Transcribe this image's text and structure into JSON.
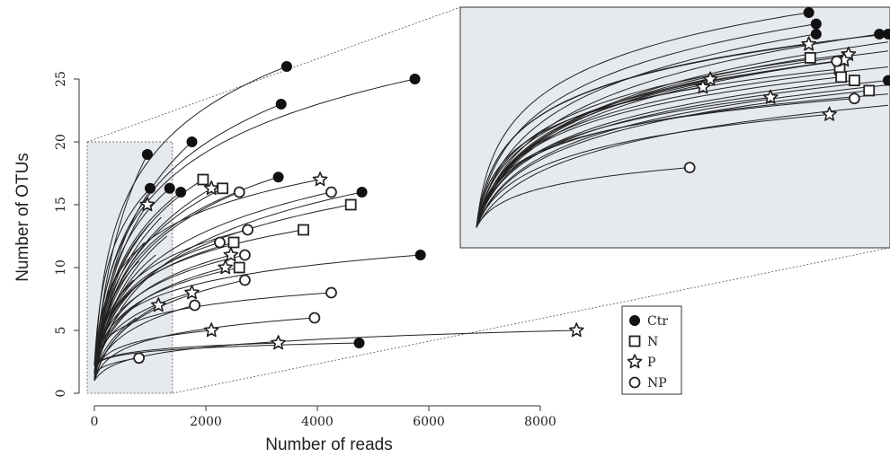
{
  "chart_data": {
    "type": "line",
    "subtype": "rarefaction-curves-with-inset",
    "xlabel": "Number of reads",
    "ylabel": "Number of OTUs",
    "xlim": [
      0,
      8000
    ],
    "ylim": [
      0,
      25
    ],
    "x_ticks": [
      "0",
      "2000",
      "4000",
      "6000",
      "8000"
    ],
    "y_ticks": [
      "0",
      "5",
      "10",
      "15",
      "20",
      "25"
    ],
    "grid": false,
    "legend_position": "bottom-right",
    "legend": [
      {
        "label": "Ctr",
        "marker": "filled-circle"
      },
      {
        "label": "N",
        "marker": "square"
      },
      {
        "label": "P",
        "marker": "star"
      },
      {
        "label": "NP",
        "marker": "open-circle"
      }
    ],
    "zoom_region": {
      "x": [
        0,
        1400
      ],
      "y": [
        0,
        20
      ]
    },
    "series": [
      {
        "group": "Ctr",
        "end": [
          3450,
          26
        ]
      },
      {
        "group": "Ctr",
        "end": [
          5750,
          25
        ]
      },
      {
        "group": "Ctr",
        "end": [
          3350,
          23
        ]
      },
      {
        "group": "Ctr",
        "end": [
          1750,
          20
        ]
      },
      {
        "group": "Ctr",
        "end": [
          950,
          19
        ]
      },
      {
        "group": "Ctr",
        "end": [
          1000,
          16.3
        ]
      },
      {
        "group": "Ctr",
        "end": [
          1350,
          16.3
        ]
      },
      {
        "group": "Ctr",
        "end": [
          1550,
          16
        ]
      },
      {
        "group": "Ctr",
        "end": [
          3300,
          17.2
        ]
      },
      {
        "group": "Ctr",
        "end": [
          4800,
          16
        ]
      },
      {
        "group": "Ctr",
        "end": [
          5850,
          11
        ]
      },
      {
        "group": "Ctr",
        "end": [
          4750,
          4
        ]
      },
      {
        "group": "N",
        "end": [
          1950,
          17
        ]
      },
      {
        "group": "N",
        "end": [
          2300,
          16.3
        ]
      },
      {
        "group": "N",
        "end": [
          4600,
          15
        ]
      },
      {
        "group": "N",
        "end": [
          3750,
          13
        ]
      },
      {
        "group": "N",
        "end": [
          2500,
          12
        ]
      },
      {
        "group": "N",
        "end": [
          2600,
          10
        ]
      },
      {
        "group": "P",
        "end": [
          950,
          15
        ]
      },
      {
        "group": "P",
        "end": [
          2100,
          16.3
        ]
      },
      {
        "group": "P",
        "end": [
          4050,
          17
        ]
      },
      {
        "group": "P",
        "end": [
          2450,
          11
        ]
      },
      {
        "group": "P",
        "end": [
          2350,
          10
        ]
      },
      {
        "group": "P",
        "end": [
          1750,
          8
        ]
      },
      {
        "group": "P",
        "end": [
          1150,
          7
        ]
      },
      {
        "group": "P",
        "end": [
          2100,
          5
        ]
      },
      {
        "group": "P",
        "end": [
          3300,
          4
        ]
      },
      {
        "group": "P",
        "end": [
          8650,
          5
        ]
      },
      {
        "group": "NP",
        "end": [
          2600,
          16
        ]
      },
      {
        "group": "NP",
        "end": [
          4250,
          16
        ]
      },
      {
        "group": "NP",
        "end": [
          2750,
          13
        ]
      },
      {
        "group": "NP",
        "end": [
          2250,
          12
        ]
      },
      {
        "group": "NP",
        "end": [
          2700,
          11
        ]
      },
      {
        "group": "NP",
        "end": [
          2700,
          9
        ]
      },
      {
        "group": "NP",
        "end": [
          1800,
          7
        ]
      },
      {
        "group": "NP",
        "end": [
          4250,
          8
        ]
      },
      {
        "group": "NP",
        "end": [
          3950,
          6
        ]
      },
      {
        "group": "NP",
        "end": [
          800,
          2.8
        ]
      }
    ],
    "inset_series": [
      {
        "group": "Ctr",
        "end": [
          1130,
          20
        ]
      },
      {
        "group": "Ctr",
        "end": [
          1155,
          19
        ]
      },
      {
        "group": "Ctr",
        "end": [
          1155,
          18.1
        ]
      },
      {
        "group": "Ctr",
        "end": [
          1370,
          18.1
        ]
      },
      {
        "group": "Ctr",
        "end": [
          1400,
          18.1
        ]
      },
      {
        "group": "Ctr",
        "end": [
          1240,
          15.7
        ]
      },
      {
        "group": "Ctr",
        "end": [
          1400,
          14
        ]
      },
      {
        "group": "N",
        "end": [
          1135,
          16
        ]
      },
      {
        "group": "N",
        "end": [
          1235,
          15
        ]
      },
      {
        "group": "N",
        "end": [
          1240,
          14.3
        ]
      },
      {
        "group": "N",
        "end": [
          1285,
          14
        ]
      },
      {
        "group": "N",
        "end": [
          1335,
          13.1
        ]
      },
      {
        "group": "P",
        "end": [
          1130,
          17.2
        ]
      },
      {
        "group": "P",
        "end": [
          1265,
          16.3
        ]
      },
      {
        "group": "P",
        "end": [
          1250,
          15.8
        ]
      },
      {
        "group": "P",
        "end": [
          795,
          14.1
        ]
      },
      {
        "group": "P",
        "end": [
          770,
          13.4
        ]
      },
      {
        "group": "P",
        "end": [
          1000,
          12.5
        ]
      },
      {
        "group": "P",
        "end": [
          1200,
          11
        ]
      },
      {
        "group": "NP",
        "end": [
          1225,
          15.7
        ]
      },
      {
        "group": "NP",
        "end": [
          1285,
          12.4
        ]
      },
      {
        "group": "NP",
        "end": [
          725,
          6.3
        ]
      }
    ]
  }
}
